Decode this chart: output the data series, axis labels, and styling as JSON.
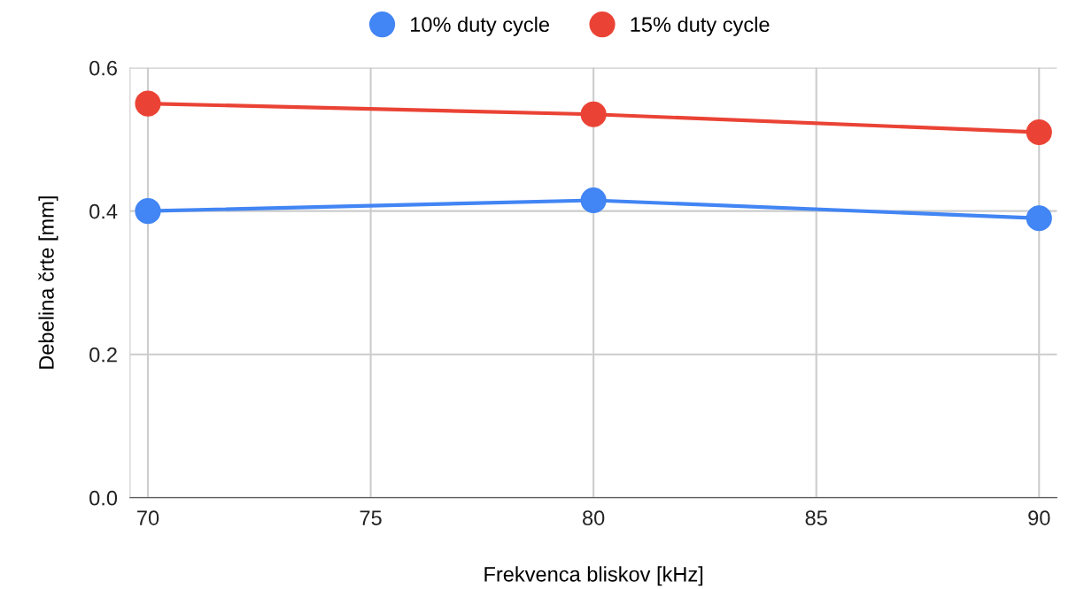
{
  "chart_data": {
    "type": "line",
    "xlabel": "Frekvenca bliskov [kHz]",
    "ylabel": "Debelina črte [mm]",
    "x": [
      70,
      80,
      90
    ],
    "series": [
      {
        "name": "10% duty cycle",
        "color": "#4285f4",
        "values": [
          0.4,
          0.415,
          0.39
        ]
      },
      {
        "name": "15% duty cycle",
        "color": "#ea4335",
        "values": [
          0.55,
          0.535,
          0.51
        ]
      }
    ],
    "xlim": [
      69.6,
      90.4
    ],
    "xticks": [
      70,
      75,
      80,
      85,
      90
    ],
    "ylim": [
      0,
      0.6
    ],
    "yticks": [
      {
        "value": 0,
        "label": "0.0"
      },
      0.2,
      0.4,
      0.6
    ],
    "grid": true,
    "legend": "top",
    "marker": "circle",
    "line_style": "solid"
  }
}
